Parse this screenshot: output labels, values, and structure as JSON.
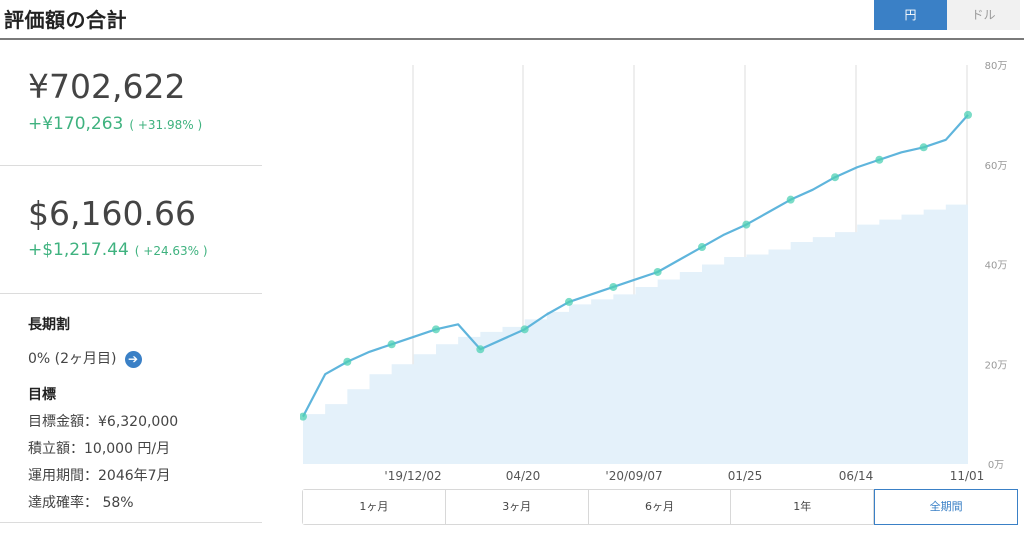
{
  "header": {
    "title": "評価額の合計",
    "currency_toggle": [
      {
        "label": "円",
        "active": true
      },
      {
        "label": "ドル",
        "active": false
      }
    ]
  },
  "summary": {
    "jpy": {
      "amount": "¥702,622",
      "gain": "+¥170,263",
      "pct": "( +31.98% )"
    },
    "usd": {
      "amount": "$6,160.66",
      "gain": "+$1,217.44",
      "pct": "( +24.63% )"
    }
  },
  "long_term_discount": {
    "title": "長期割",
    "value": "0% (2ヶ月目)"
  },
  "goal": {
    "title": "目標",
    "lines": [
      "目標金額：¥6,320,000",
      "積立額：10,000 円/月",
      "運用期間：2046年7月",
      "達成確率： 58%"
    ]
  },
  "period_buttons": [
    {
      "label": "1ヶ月",
      "active": false
    },
    {
      "label": "3ヶ月",
      "active": false
    },
    {
      "label": "6ヶ月",
      "active": false
    },
    {
      "label": "1年",
      "active": false
    },
    {
      "label": "全期間",
      "active": true
    }
  ],
  "colors": {
    "accent": "#3a80c6",
    "gain": "#3fb27f",
    "line": "#5fb5dc",
    "area": "#e4f1fa",
    "marker": "#4fd0b4"
  },
  "chart_data": {
    "type": "line",
    "y_unit": "万",
    "y_ticks": [
      "0万",
      "20万",
      "40万",
      "60万",
      "80万"
    ],
    "ylim": [
      0,
      80
    ],
    "x_ticks": [
      "'19/12/02",
      "04/20",
      "'20/09/07",
      "01/25",
      "06/14",
      "11/01"
    ],
    "grid": true,
    "series": [
      {
        "x": [
          0,
          2,
          4,
          6,
          8,
          10,
          12,
          14,
          16,
          18,
          20,
          22,
          24,
          26,
          28,
          30,
          32,
          34,
          36,
          38,
          40,
          42,
          44,
          46,
          48,
          50,
          52,
          54,
          56,
          58,
          60
        ],
        "values": [
          9.5,
          18,
          20.5,
          22.5,
          24,
          25.5,
          27,
          28,
          23,
          25,
          27,
          30,
          32.5,
          34,
          35.5,
          37,
          38.5,
          41,
          43.5,
          46,
          48,
          50.5,
          53,
          55,
          57.5,
          59.5,
          61,
          62.5,
          63.5,
          65,
          70
        ]
      },
      {
        "x": [
          0,
          2,
          4,
          6,
          8,
          10,
          12,
          14,
          16,
          18,
          20,
          22,
          24,
          26,
          28,
          30,
          32,
          34,
          36,
          38,
          40,
          42,
          44,
          46,
          48,
          50,
          52,
          54,
          56,
          58,
          60
        ],
        "values": [
          10,
          12,
          15,
          18,
          20,
          22,
          24,
          25.5,
          26.5,
          27.5,
          29,
          30.5,
          32,
          33,
          34,
          35.5,
          37,
          38.5,
          40,
          41.5,
          42,
          43,
          44.5,
          45.5,
          46.5,
          48,
          49,
          50,
          51,
          52,
          53
        ]
      }
    ]
  }
}
